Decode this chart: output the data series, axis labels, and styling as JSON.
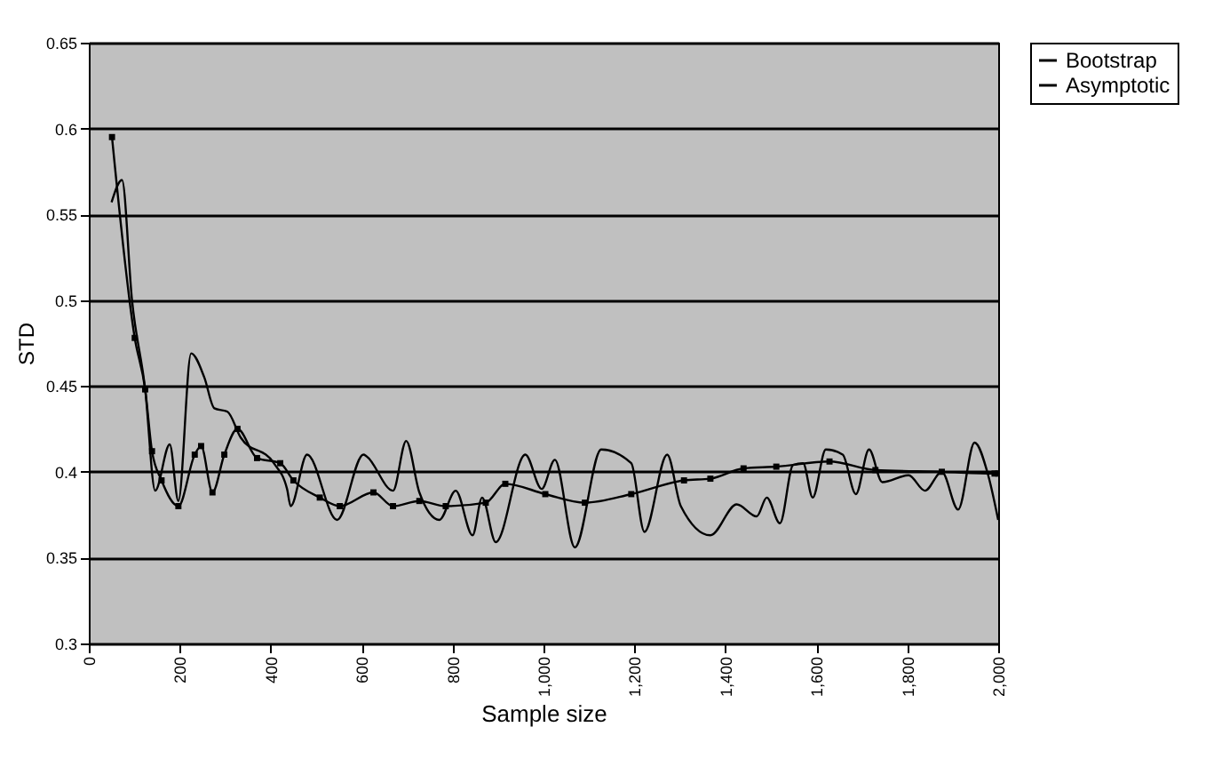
{
  "chart_data": {
    "type": "line",
    "xlabel": "Sample size",
    "ylabel": "STD",
    "xlim": [
      0,
      2000
    ],
    "xticks": [
      0,
      200,
      400,
      600,
      800,
      {
        "value": 1000,
        "label": "1,000"
      },
      {
        "value": 1200,
        "label": "1,200"
      },
      {
        "value": 1400,
        "label": "1,400"
      },
      {
        "value": 1600,
        "label": "1,600"
      },
      {
        "value": 1800,
        "label": "1,800"
      },
      {
        "value": 2000,
        "label": "2,000"
      }
    ],
    "ylim": [
      0.3,
      0.65
    ],
    "yticks": [
      0.3,
      0.35,
      0.4,
      0.45,
      0.5,
      0.55,
      0.6,
      0.65
    ],
    "grid": "y",
    "legend": "right",
    "series": [
      {
        "name": "Bootstrap",
        "color": "#000000",
        "marker": "none",
        "x": [
          50,
          73,
          95,
          124,
          146,
          178,
          197,
          225,
          254,
          276,
          305,
          334,
          407,
          436,
          444,
          480,
          546,
          604,
          611,
          669,
          698,
          727,
          771,
          807,
          844,
          865,
          895,
          960,
          996,
          1025,
          1069,
          1127,
          1193,
          1222,
          1272,
          1302,
          1367,
          1425,
          1469,
          1491,
          1520,
          1549,
          1571,
          1592,
          1621,
          1658,
          1687,
          1716,
          1745,
          1803,
          1839,
          1876,
          1912,
          1948,
          1978,
          2000
        ],
        "values": [
          0.557,
          0.57,
          0.5,
          0.448,
          0.389,
          0.416,
          0.383,
          0.469,
          0.455,
          0.437,
          0.435,
          0.42,
          0.405,
          0.39,
          0.38,
          0.41,
          0.372,
          0.41,
          0.409,
          0.389,
          0.418,
          0.388,
          0.372,
          0.389,
          0.363,
          0.385,
          0.359,
          0.41,
          0.39,
          0.407,
          0.356,
          0.413,
          0.405,
          0.365,
          0.41,
          0.38,
          0.363,
          0.381,
          0.374,
          0.385,
          0.37,
          0.404,
          0.405,
          0.385,
          0.413,
          0.41,
          0.387,
          0.413,
          0.394,
          0.398,
          0.389,
          0.4,
          0.378,
          0.417,
          0.398,
          0.372
        ]
      },
      {
        "name": "Asymptotic",
        "color": "#000000",
        "marker": "square",
        "x": [
          51,
          101,
          124,
          139,
          160,
          197,
          233,
          247,
          272,
          298,
          327,
          370,
          421,
          450,
          508,
          552,
          626,
          669,
          727,
          785,
          873,
          916,
          1004,
          1091,
          1193,
          1309,
          1367,
          1440,
          1512,
          1629,
          1730,
          1876,
          1992,
          2000
        ],
        "values": [
          0.595,
          0.478,
          0.448,
          0.412,
          0.395,
          0.38,
          0.41,
          0.415,
          0.388,
          0.41,
          0.425,
          0.408,
          0.405,
          0.395,
          0.385,
          0.38,
          0.388,
          0.38,
          0.383,
          0.38,
          0.382,
          0.393,
          0.387,
          0.382,
          0.387,
          0.395,
          0.396,
          0.402,
          0.403,
          0.406,
          0.401,
          0.4,
          0.399,
          0.399
        ]
      }
    ]
  }
}
